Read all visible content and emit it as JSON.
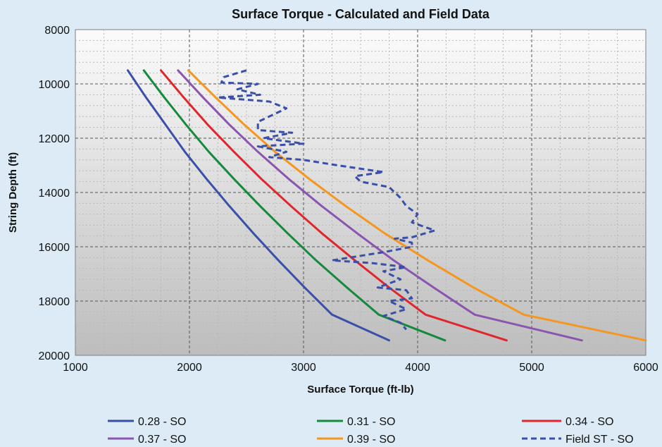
{
  "chart_data": {
    "type": "line",
    "title": "Surface Torque - Calculated and Field Data",
    "xlabel": "Surface Torque (ft-lb)",
    "ylabel": "String Depth (ft)",
    "xlim": [
      1000,
      6000
    ],
    "ylim": [
      20000,
      8000
    ],
    "y_inverted": true,
    "x_ticks": [
      1000,
      2000,
      3000,
      4000,
      5000,
      6000
    ],
    "y_ticks": [
      8000,
      10000,
      12000,
      14000,
      16000,
      18000,
      20000
    ],
    "grid": true,
    "legend_position": "bottom",
    "series": [
      {
        "name": "0.28 - SO",
        "color": "#3a4fa8",
        "dash": false,
        "points": [
          [
            1460,
            9500
          ],
          [
            1620,
            10500
          ],
          [
            1790,
            11500
          ],
          [
            1960,
            12500
          ],
          [
            2150,
            13500
          ],
          [
            2350,
            14500
          ],
          [
            2560,
            15500
          ],
          [
            2780,
            16500
          ],
          [
            3010,
            17500
          ],
          [
            3250,
            18500
          ],
          [
            3750,
            19450
          ]
        ]
      },
      {
        "name": "0.31 - SO",
        "color": "#168a3c",
        "dash": false,
        "points": [
          [
            1600,
            9500
          ],
          [
            1780,
            10500
          ],
          [
            1970,
            11500
          ],
          [
            2170,
            12500
          ],
          [
            2390,
            13500
          ],
          [
            2620,
            14500
          ],
          [
            2860,
            15500
          ],
          [
            3110,
            16500
          ],
          [
            3380,
            17500
          ],
          [
            3660,
            18500
          ],
          [
            4240,
            19450
          ]
        ]
      },
      {
        "name": "0.34 - SO",
        "color": "#e0262b",
        "dash": false,
        "points": [
          [
            1750,
            9500
          ],
          [
            1950,
            10500
          ],
          [
            2160,
            11500
          ],
          [
            2390,
            12500
          ],
          [
            2630,
            13500
          ],
          [
            2890,
            14500
          ],
          [
            3160,
            15500
          ],
          [
            3450,
            16500
          ],
          [
            3750,
            17500
          ],
          [
            4070,
            18500
          ],
          [
            4780,
            19450
          ]
        ]
      },
      {
        "name": "0.37 - SO",
        "color": "#8a55b0",
        "dash": false,
        "points": [
          [
            1900,
            9500
          ],
          [
            2120,
            10500
          ],
          [
            2350,
            11500
          ],
          [
            2600,
            12500
          ],
          [
            2870,
            13500
          ],
          [
            3160,
            14500
          ],
          [
            3470,
            15500
          ],
          [
            3790,
            16500
          ],
          [
            4140,
            17500
          ],
          [
            4500,
            18500
          ],
          [
            5440,
            19450
          ]
        ]
      },
      {
        "name": "0.39 - SO",
        "color": "#f5961e",
        "dash": false,
        "points": [
          [
            1990,
            9500
          ],
          [
            2230,
            10500
          ],
          [
            2480,
            11500
          ],
          [
            2750,
            12500
          ],
          [
            3050,
            13500
          ],
          [
            3370,
            14500
          ],
          [
            3710,
            15500
          ],
          [
            4090,
            16500
          ],
          [
            4490,
            17500
          ],
          [
            4930,
            18500
          ],
          [
            6000,
            19450
          ]
        ]
      },
      {
        "name": "Field ST - SO",
        "color": "#3a4fa8",
        "dash": true,
        "points": [
          [
            2500,
            9500
          ],
          [
            2300,
            9750
          ],
          [
            2280,
            9950
          ],
          [
            2600,
            10000
          ],
          [
            2420,
            10200
          ],
          [
            2620,
            10400
          ],
          [
            2250,
            10500
          ],
          [
            2700,
            10650
          ],
          [
            2850,
            10900
          ],
          [
            2700,
            11200
          ],
          [
            2600,
            11400
          ],
          [
            2600,
            11700
          ],
          [
            2900,
            11800
          ],
          [
            2650,
            12000
          ],
          [
            3000,
            12200
          ],
          [
            2600,
            12300
          ],
          [
            2850,
            12500
          ],
          [
            2700,
            12700
          ],
          [
            3000,
            12800
          ],
          [
            3300,
            13000
          ],
          [
            3700,
            13250
          ],
          [
            3450,
            13400
          ],
          [
            3500,
            13600
          ],
          [
            3750,
            13800
          ],
          [
            3850,
            14200
          ],
          [
            3900,
            14500
          ],
          [
            4000,
            14800
          ],
          [
            3950,
            15100
          ],
          [
            4150,
            15400
          ],
          [
            3950,
            15650
          ],
          [
            3800,
            15700
          ],
          [
            3950,
            15850
          ],
          [
            3950,
            16000
          ],
          [
            3700,
            16200
          ],
          [
            3250,
            16500
          ],
          [
            3600,
            16600
          ],
          [
            3900,
            16750
          ],
          [
            3700,
            16900
          ],
          [
            3850,
            17200
          ],
          [
            3650,
            17500
          ],
          [
            3900,
            17600
          ],
          [
            3950,
            17900
          ],
          [
            3750,
            18000
          ],
          [
            3900,
            18300
          ],
          [
            3700,
            18550
          ],
          [
            3850,
            18800
          ],
          [
            3900,
            19050
          ]
        ]
      }
    ]
  }
}
